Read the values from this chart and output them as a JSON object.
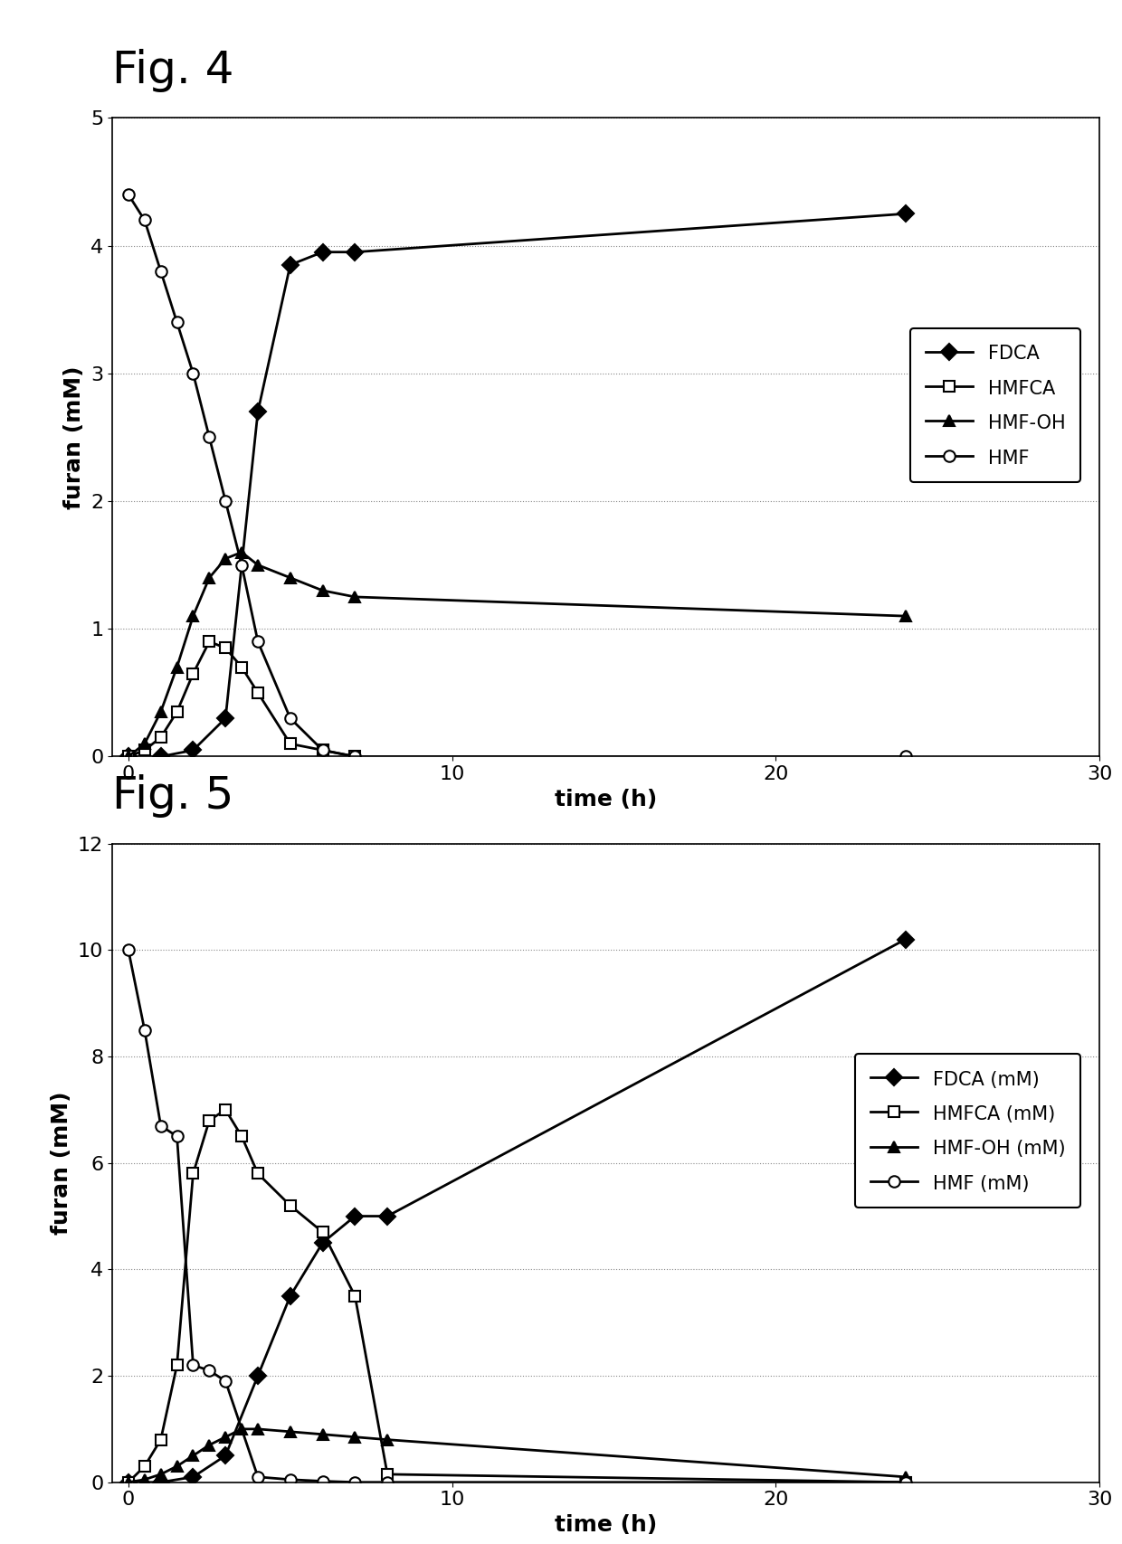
{
  "fig4": {
    "title": "Fig. 4",
    "xlabel": "time (h)",
    "ylabel": "furan (mM)",
    "xlim": [
      -0.5,
      30
    ],
    "ylim": [
      0,
      5
    ],
    "yticks": [
      0,
      1,
      2,
      3,
      4,
      5
    ],
    "xticks": [
      0,
      10,
      20,
      30
    ],
    "series": {
      "FDCA": {
        "x": [
          0,
          1,
          2,
          3,
          4,
          5,
          6,
          7,
          24
        ],
        "y": [
          0,
          0,
          0.05,
          0.3,
          2.7,
          3.85,
          3.95,
          3.95,
          4.25
        ],
        "marker": "D",
        "markerfill": "#000000",
        "label": "FDCA"
      },
      "HMFCA": {
        "x": [
          0,
          0.5,
          1,
          1.5,
          2,
          2.5,
          3,
          3.5,
          4,
          5,
          6,
          7
        ],
        "y": [
          0,
          0.05,
          0.15,
          0.35,
          0.65,
          0.9,
          0.85,
          0.7,
          0.5,
          0.1,
          0.05,
          0.0
        ],
        "marker": "s",
        "markerfill": "white",
        "label": "HMFCA"
      },
      "HMFOH": {
        "x": [
          0,
          0.5,
          1,
          1.5,
          2,
          2.5,
          3,
          3.5,
          4,
          5,
          6,
          7,
          24
        ],
        "y": [
          0,
          0.1,
          0.35,
          0.7,
          1.1,
          1.4,
          1.55,
          1.6,
          1.5,
          1.4,
          1.3,
          1.25,
          1.1
        ],
        "marker": "^",
        "markerfill": "#000000",
        "label": "HMF-OH"
      },
      "HMF": {
        "x": [
          0,
          0.5,
          1,
          1.5,
          2,
          2.5,
          3,
          3.5,
          4,
          5,
          6,
          7,
          24
        ],
        "y": [
          4.4,
          4.2,
          3.8,
          3.4,
          3.0,
          2.5,
          2.0,
          1.5,
          0.9,
          0.3,
          0.05,
          0.0,
          0.0
        ],
        "marker": "o",
        "markerfill": "white",
        "label": "HMF"
      }
    }
  },
  "fig5": {
    "title": "Fig. 5",
    "xlabel": "time (h)",
    "ylabel": "furan (mM)",
    "xlim": [
      -0.5,
      30
    ],
    "ylim": [
      0,
      12
    ],
    "yticks": [
      0,
      2,
      4,
      6,
      8,
      10,
      12
    ],
    "xticks": [
      0,
      10,
      20,
      30
    ],
    "series": {
      "FDCA": {
        "x": [
          0,
          1,
          2,
          3,
          4,
          5,
          6,
          7,
          8,
          24
        ],
        "y": [
          0,
          0,
          0.1,
          0.5,
          2.0,
          3.5,
          4.5,
          5.0,
          5.0,
          10.2
        ],
        "marker": "D",
        "markerfill": "#000000",
        "label": "FDCA (mM)"
      },
      "HMFCA": {
        "x": [
          0,
          0.5,
          1,
          1.5,
          2,
          2.5,
          3,
          3.5,
          4,
          5,
          6,
          7,
          8,
          24
        ],
        "y": [
          0,
          0.3,
          0.8,
          2.2,
          5.8,
          6.8,
          7.0,
          6.5,
          5.8,
          5.2,
          4.7,
          3.5,
          0.15,
          0.0
        ],
        "marker": "s",
        "markerfill": "white",
        "label": "HMFCA (mM)"
      },
      "HMFOH": {
        "x": [
          0,
          0.5,
          1,
          1.5,
          2,
          2.5,
          3,
          3.5,
          4,
          5,
          6,
          7,
          8,
          24
        ],
        "y": [
          0,
          0.05,
          0.15,
          0.3,
          0.5,
          0.7,
          0.85,
          1.0,
          1.0,
          0.95,
          0.9,
          0.85,
          0.8,
          0.1
        ],
        "marker": "^",
        "markerfill": "#000000",
        "label": "HMF-OH (mM)"
      },
      "HMF": {
        "x": [
          0,
          0.5,
          1,
          1.5,
          2,
          2.5,
          3,
          4,
          5,
          6,
          7,
          8,
          24
        ],
        "y": [
          10.0,
          8.5,
          6.7,
          6.5,
          2.2,
          2.1,
          1.9,
          0.1,
          0.05,
          0.02,
          0.0,
          0.0,
          0.0
        ],
        "marker": "o",
        "markerfill": "white",
        "label": "HMF (mM)"
      }
    }
  },
  "line_color": "#000000",
  "background": "#ffffff",
  "title_fontsize": 36,
  "label_fontsize": 18,
  "tick_fontsize": 16,
  "legend_fontsize": 15,
  "markersize": 9,
  "linewidth": 2.0
}
